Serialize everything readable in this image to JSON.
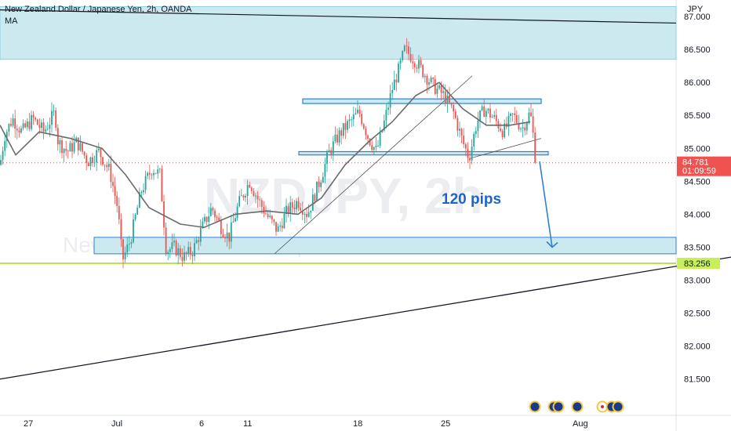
{
  "header": {
    "title": "New Zealand Dollar / Japanese Yen, 2h, OANDA",
    "indicator": "MA",
    "currency": "JPY"
  },
  "watermark": {
    "symbol": "NZDJPY, 2h",
    "name": "New Zealand Dollar / Japanese Yen"
  },
  "annotation": {
    "text": "120 pips"
  },
  "badges": {
    "last_price": "84.781",
    "countdown": "01:09:59",
    "level": "83.256"
  },
  "colors": {
    "up": "#26a69a",
    "down": "#ef5350",
    "ma": "#6b6b6b",
    "zone_fill": "#cbe9ef",
    "zone_border": "#2f7fd6",
    "green_line": "#b9e34a",
    "last_price_badge": "#ef5350",
    "level_badge": "#c6ef5a",
    "annotation": "#1f63c8"
  },
  "chart_data": {
    "type": "candlestick",
    "ylim": [
      80.95,
      87.25
    ],
    "y_ticks": [
      "81.500",
      "82.000",
      "82.500",
      "83.000",
      "83.500",
      "84.000",
      "84.500",
      "85.000",
      "85.500",
      "86.000",
      "86.500",
      "87.000"
    ],
    "x_ticks": [
      "27",
      "Jul",
      "6",
      "11",
      "18",
      "25",
      "Aug"
    ],
    "x_range_days": [
      25.9,
      32.5
    ],
    "x_tick_days": [
      27,
      31,
      36,
      41,
      48,
      55,
      63
    ],
    "price_path": [
      [
        0,
        84.75
      ],
      [
        6,
        85.2
      ],
      [
        16,
        85.45
      ],
      [
        28,
        85.25
      ],
      [
        42,
        85.45
      ],
      [
        56,
        85.25
      ],
      [
        70,
        85.55
      ],
      [
        74,
        85.1
      ],
      [
        86,
        84.95
      ],
      [
        98,
        85.1
      ],
      [
        112,
        84.8
      ],
      [
        126,
        84.95
      ],
      [
        140,
        84.65
      ],
      [
        150,
        84.1
      ],
      [
        156,
        83.3
      ],
      [
        166,
        83.6
      ],
      [
        180,
        84.35
      ],
      [
        194,
        84.7
      ],
      [
        204,
        84.6
      ],
      [
        212,
        83.45
      ],
      [
        222,
        83.5
      ],
      [
        234,
        83.35
      ],
      [
        246,
        83.45
      ],
      [
        258,
        83.8
      ],
      [
        270,
        84.1
      ],
      [
        282,
        83.8
      ],
      [
        292,
        83.65
      ],
      [
        304,
        84.15
      ],
      [
        318,
        84.5
      ],
      [
        330,
        84.2
      ],
      [
        342,
        83.95
      ],
      [
        354,
        83.75
      ],
      [
        366,
        84.05
      ],
      [
        380,
        84.2
      ],
      [
        392,
        84.0
      ],
      [
        406,
        84.45
      ],
      [
        420,
        84.95
      ],
      [
        432,
        85.2
      ],
      [
        446,
        85.4
      ],
      [
        458,
        85.55
      ],
      [
        470,
        85.15
      ],
      [
        480,
        84.95
      ],
      [
        490,
        85.4
      ],
      [
        500,
        85.9
      ],
      [
        510,
        86.25
      ],
      [
        516,
        86.5
      ],
      [
        528,
        86.35
      ],
      [
        540,
        86.15
      ],
      [
        552,
        85.95
      ],
      [
        566,
        85.8
      ],
      [
        578,
        85.55
      ],
      [
        590,
        85.1
      ],
      [
        598,
        84.85
      ],
      [
        608,
        85.4
      ],
      [
        618,
        85.6
      ],
      [
        630,
        85.45
      ],
      [
        642,
        85.25
      ],
      [
        654,
        85.5
      ],
      [
        666,
        85.3
      ],
      [
        676,
        85.55
      ],
      [
        684,
        84.8
      ]
    ],
    "ma_path": [
      [
        0,
        85.35
      ],
      [
        20,
        84.9
      ],
      [
        50,
        85.25
      ],
      [
        90,
        85.15
      ],
      [
        130,
        85.0
      ],
      [
        160,
        84.6
      ],
      [
        190,
        84.1
      ],
      [
        230,
        83.85
      ],
      [
        260,
        83.8
      ],
      [
        300,
        84.0
      ],
      [
        340,
        84.05
      ],
      [
        380,
        84.0
      ],
      [
        410,
        84.25
      ],
      [
        440,
        84.75
      ],
      [
        470,
        85.1
      ],
      [
        500,
        85.4
      ],
      [
        530,
        85.8
      ],
      [
        560,
        86.0
      ],
      [
        590,
        85.6
      ],
      [
        620,
        85.35
      ],
      [
        650,
        85.35
      ],
      [
        676,
        85.4
      ]
    ],
    "resistance_zone": [
      86.35,
      87.15
    ],
    "upper_channel": [
      85.68,
      85.75
    ],
    "lower_channel": [
      84.9,
      84.95
    ],
    "support_zone": [
      83.4,
      83.65
    ],
    "green_level": 83.256,
    "last_price": 84.781,
    "long_trendline": [
      [
        0,
        81.5
      ],
      [
        932,
        83.35
      ]
    ],
    "top_trendline": [
      [
        0,
        87.1
      ],
      [
        862,
        86.9
      ]
    ],
    "rising_trendline": [
      [
        350,
        83.4
      ],
      [
        602,
        86.1
      ]
    ],
    "small_trendline": [
      [
        600,
        84.85
      ],
      [
        690,
        85.15
      ]
    ],
    "arrow": {
      "from": [
        688,
        84.8
      ],
      "to": [
        704,
        83.5
      ]
    }
  }
}
